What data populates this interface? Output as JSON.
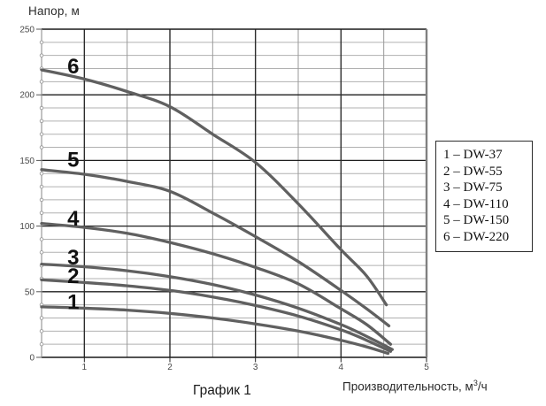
{
  "page": {
    "background": "#ffffff"
  },
  "chart_data": {
    "type": "line",
    "title": "",
    "caption": "График 1",
    "y_axis_title": "Напор, м",
    "x_axis_title": {
      "base": "Производительность, м",
      "sup": "3",
      "suffix": "/ч"
    },
    "xlim": [
      0.5,
      5
    ],
    "ylim": [
      0,
      250
    ],
    "x_major_ticks": [
      1,
      2,
      3,
      4,
      5
    ],
    "x_minor_ticks": [
      1.5,
      2.5,
      3.5,
      4.5
    ],
    "y_major_ticks": [
      0,
      50,
      100,
      150,
      200,
      250
    ],
    "y_minor_step": 10,
    "grid": "major+minor",
    "legend": {
      "position": "right",
      "items": [
        "1 – DW-37",
        "2 – DW-55",
        "3 – DW-75",
        "4 – DW-110",
        "5 – DW-150",
        "6 – DW-220"
      ]
    },
    "series": [
      {
        "num": "1",
        "model": "DW-37",
        "x": [
          0.5,
          1,
          1.5,
          2,
          2.5,
          3,
          3.5,
          4,
          4.3,
          4.55
        ],
        "y": [
          38.5,
          37.5,
          36,
          33.5,
          30,
          25.5,
          20,
          13,
          8,
          3
        ],
        "label_at": {
          "x": 0.87,
          "y": 42.5
        }
      },
      {
        "num": "2",
        "model": "DW-55",
        "x": [
          0.5,
          1,
          1.5,
          2,
          2.5,
          3,
          3.5,
          4,
          4.3,
          4.58
        ],
        "y": [
          59,
          57,
          54.5,
          51,
          46,
          39.5,
          31.5,
          21,
          13,
          4.5
        ],
        "label_at": {
          "x": 0.87,
          "y": 62.5
        }
      },
      {
        "num": "3",
        "model": "DW-75",
        "x": [
          0.5,
          1,
          1.5,
          2,
          2.5,
          3,
          3.5,
          4,
          4.3,
          4.6
        ],
        "y": [
          71,
          69,
          66,
          61.5,
          55.5,
          47.5,
          37.5,
          25,
          16,
          6
        ],
        "label_at": {
          "x": 0.87,
          "y": 76.5
        }
      },
      {
        "num": "4",
        "model": "DW-110",
        "x": [
          0.5,
          1,
          1.5,
          2,
          2.5,
          3,
          3.5,
          4,
          4.3,
          4.58
        ],
        "y": [
          102,
          99,
          94.5,
          87.5,
          79,
          68.5,
          56,
          37,
          25,
          10
        ],
        "label_at": {
          "x": 0.87,
          "y": 106
        }
      },
      {
        "num": "5",
        "model": "DW-150",
        "x": [
          0.5,
          1,
          1.5,
          2,
          2.5,
          3,
          3.5,
          4,
          4.3,
          4.56
        ],
        "y": [
          143,
          139.5,
          134,
          126.5,
          110,
          92,
          73,
          51,
          37,
          24
        ],
        "label_at": {
          "x": 0.87,
          "y": 151
        }
      },
      {
        "num": "6",
        "model": "DW-220",
        "x": [
          0.5,
          1,
          1.5,
          2,
          2.5,
          3,
          3.5,
          4,
          4.3,
          4.53
        ],
        "y": [
          219,
          212,
          202.5,
          191,
          170,
          148.5,
          117,
          82,
          62,
          40
        ],
        "label_at": {
          "x": 0.87,
          "y": 222
        }
      }
    ],
    "colors": {
      "curve": "#606060",
      "grid_major": "#1f1f1f",
      "grid_minor_h": "#b0b0b0",
      "grid_minor_v": "#9a9a9a",
      "border_left": "#9a9a9a",
      "border_right": "#808080",
      "axis_text": "#4a4a4a",
      "curve_label": "#111111"
    }
  }
}
